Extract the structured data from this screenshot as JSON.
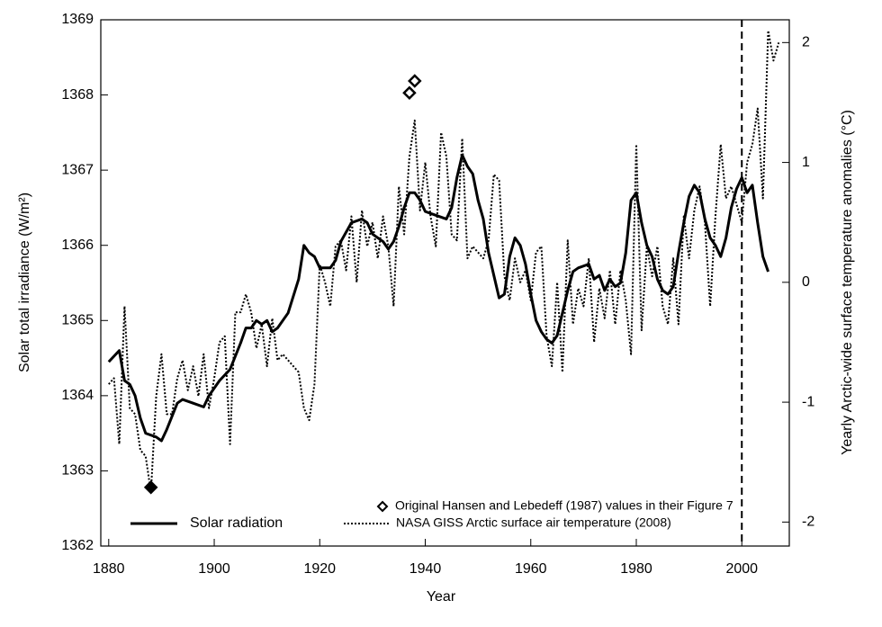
{
  "chart_data": {
    "type": "line",
    "xlabel": "Year",
    "ylabel": "Solar total irradiance (W/m²)",
    "y2label": "Yearly Arctic-wide surface temperature anomalies (°C)",
    "xlim": [
      1878.5,
      2009
    ],
    "xticks": [
      1880,
      1900,
      1920,
      1940,
      1960,
      1980,
      2000
    ],
    "ylim": [
      1362,
      1369
    ],
    "yticks": [
      1362,
      1363,
      1364,
      1365,
      1366,
      1367,
      1368,
      1369
    ],
    "y2lim": [
      -2.2,
      2.19
    ],
    "y2ticks": [
      -2,
      -1,
      0,
      1,
      2
    ],
    "vline": 2000,
    "series": [
      {
        "name": "Solar radiation",
        "color": "#000000",
        "style": "solid",
        "axis": "y",
        "x": [
          1880,
          1882,
          1883,
          1884,
          1885,
          1886,
          1887,
          1889,
          1890,
          1891,
          1893,
          1894,
          1896,
          1898,
          1899,
          1901,
          1903,
          1905,
          1906,
          1907,
          1908,
          1909,
          1910,
          1911,
          1912,
          1914,
          1916,
          1917,
          1918,
          1919,
          1920,
          1922,
          1923,
          1924,
          1926,
          1928,
          1929,
          1930,
          1932,
          1933,
          1934,
          1935,
          1936,
          1937,
          1938,
          1939,
          1940,
          1942,
          1944,
          1945,
          1946,
          1947,
          1948,
          1949,
          1950,
          1951,
          1952,
          1953,
          1954,
          1955,
          1956,
          1957,
          1958,
          1959,
          1960,
          1961,
          1962,
          1963,
          1964,
          1965,
          1966,
          1967,
          1968,
          1969,
          1971,
          1972,
          1973,
          1974,
          1975,
          1976,
          1977,
          1978,
          1979,
          1980,
          1981,
          1982,
          1983,
          1984,
          1985,
          1986,
          1987,
          1988,
          1989,
          1990,
          1991,
          1992,
          1993,
          1994,
          1995,
          1996,
          1997,
          1998,
          1999,
          2000,
          2001,
          2002,
          2003,
          2004,
          2005
        ],
        "values": [
          1364.45,
          1364.6,
          1364.2,
          1364.15,
          1364.0,
          1363.7,
          1363.5,
          1363.45,
          1363.4,
          1363.55,
          1363.9,
          1363.95,
          1363.9,
          1363.85,
          1364.0,
          1364.2,
          1364.35,
          1364.7,
          1364.9,
          1364.9,
          1365.0,
          1364.95,
          1365.0,
          1364.85,
          1364.9,
          1365.1,
          1365.55,
          1366.0,
          1365.9,
          1365.85,
          1365.7,
          1365.7,
          1365.8,
          1366.05,
          1366.3,
          1366.35,
          1366.3,
          1366.15,
          1366.05,
          1365.95,
          1366.05,
          1366.25,
          1366.5,
          1366.7,
          1366.7,
          1366.6,
          1366.45,
          1366.4,
          1366.35,
          1366.5,
          1366.9,
          1367.2,
          1367.05,
          1366.95,
          1366.6,
          1366.35,
          1365.9,
          1365.6,
          1365.3,
          1365.35,
          1365.85,
          1366.1,
          1366.0,
          1365.75,
          1365.35,
          1365.0,
          1364.85,
          1364.75,
          1364.7,
          1364.8,
          1365.1,
          1365.4,
          1365.65,
          1365.7,
          1365.75,
          1365.55,
          1365.6,
          1365.4,
          1365.55,
          1365.45,
          1365.5,
          1365.9,
          1366.6,
          1366.7,
          1366.3,
          1366.0,
          1365.85,
          1365.55,
          1365.4,
          1365.35,
          1365.45,
          1365.9,
          1366.3,
          1366.65,
          1366.8,
          1366.7,
          1366.35,
          1366.1,
          1366.0,
          1365.85,
          1366.1,
          1366.5,
          1366.75,
          1366.9,
          1366.7,
          1366.8,
          1366.3,
          1365.85,
          1365.65
        ]
      },
      {
        "name": "NASA GISS Arctic surface air temperature (2008)",
        "color": "#000000",
        "style": "dotted",
        "axis": "y2",
        "x": [
          1880,
          1881,
          1882,
          1883,
          1884,
          1885,
          1886,
          1887,
          1888,
          1889,
          1890,
          1891,
          1892,
          1893,
          1894,
          1895,
          1896,
          1897,
          1898,
          1899,
          1900,
          1901,
          1902,
          1903,
          1904,
          1905,
          1906,
          1907,
          1908,
          1909,
          1910,
          1911,
          1912,
          1913,
          1914,
          1915,
          1916,
          1917,
          1918,
          1919,
          1920,
          1921,
          1922,
          1923,
          1924,
          1925,
          1926,
          1927,
          1928,
          1929,
          1930,
          1931,
          1932,
          1933,
          1934,
          1935,
          1936,
          1937,
          1938,
          1939,
          1940,
          1941,
          1942,
          1943,
          1944,
          1945,
          1946,
          1947,
          1948,
          1949,
          1950,
          1951,
          1952,
          1953,
          1954,
          1955,
          1956,
          1957,
          1958,
          1959,
          1960,
          1961,
          1962,
          1963,
          1964,
          1965,
          1966,
          1967,
          1968,
          1969,
          1970,
          1971,
          1972,
          1973,
          1974,
          1975,
          1976,
          1977,
          1978,
          1979,
          1980,
          1981,
          1982,
          1983,
          1984,
          1985,
          1986,
          1987,
          1988,
          1989,
          1990,
          1991,
          1992,
          1993,
          1994,
          1995,
          1996,
          1997,
          1998,
          1999,
          2000,
          2001,
          2002,
          2003,
          2004,
          2005,
          2006,
          2007
        ],
        "values": [
          -0.85,
          -0.8,
          -1.35,
          -0.2,
          -1.05,
          -1.1,
          -1.4,
          -1.45,
          -1.75,
          -0.95,
          -0.6,
          -1.1,
          -1.1,
          -0.8,
          -0.65,
          -0.9,
          -0.7,
          -0.95,
          -0.6,
          -1.05,
          -0.8,
          -0.5,
          -0.45,
          -1.35,
          -0.25,
          -0.25,
          -0.1,
          -0.25,
          -0.55,
          -0.35,
          -0.7,
          -0.3,
          -0.65,
          -0.6,
          -0.65,
          -0.7,
          -0.75,
          -1.05,
          -1.15,
          -0.85,
          0.15,
          0.0,
          -0.2,
          0.3,
          0.35,
          0.1,
          0.55,
          0.0,
          0.6,
          0.3,
          0.5,
          0.2,
          0.55,
          0.3,
          -0.2,
          0.8,
          0.4,
          1.05,
          1.35,
          0.6,
          1.0,
          0.55,
          0.3,
          1.25,
          1.05,
          0.4,
          0.35,
          1.2,
          0.2,
          0.3,
          0.25,
          0.2,
          0.35,
          0.9,
          0.85,
          0.05,
          -0.15,
          0.2,
          0.0,
          0.1,
          -0.15,
          0.25,
          0.3,
          -0.45,
          -0.7,
          0.0,
          -0.75,
          0.35,
          -0.35,
          -0.05,
          -0.2,
          0.2,
          -0.5,
          -0.05,
          -0.3,
          0.1,
          -0.35,
          0.1,
          -0.15,
          -0.6,
          1.15,
          -0.4,
          0.3,
          0.05,
          0.3,
          -0.2,
          -0.35,
          0.2,
          -0.35,
          0.55,
          0.2,
          0.6,
          0.8,
          0.5,
          -0.2,
          0.55,
          1.15,
          0.7,
          0.8,
          0.65,
          0.5,
          1.0,
          1.15,
          1.45,
          0.7,
          2.1,
          1.85,
          2.0
        ]
      },
      {
        "name": "Original Hansen and Lebedeff (1987) values in their Figure 7",
        "color": "#000000",
        "style": "hollow-diamond",
        "axis": "y2",
        "x": [
          1937,
          1938
        ],
        "values": [
          1.58,
          1.68
        ]
      },
      {
        "color": "#000000",
        "style": "filled-diamond",
        "axis": "y2",
        "x": [
          1888
        ],
        "values": [
          -1.71
        ]
      }
    ]
  }
}
